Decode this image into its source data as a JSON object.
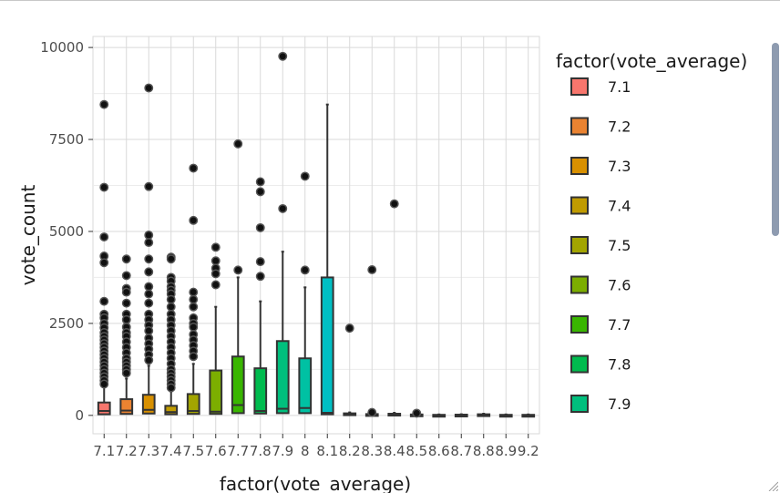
{
  "chart_data": {
    "type": "boxplot",
    "xlabel": "factor(vote_average)",
    "ylabel": "vote_count",
    "ylim": [
      -500,
      10300
    ],
    "y_ticks": [
      0,
      2500,
      5000,
      7500,
      10000
    ],
    "grid": true,
    "legend_title": "factor(vote_average)",
    "legend_position": "right",
    "categories": [
      "7.1",
      "7.2",
      "7.3",
      "7.4",
      "7.5",
      "7.6",
      "7.7",
      "7.8",
      "7.9",
      "8",
      "8.1",
      "8.2",
      "8.3",
      "8.4",
      "8.5",
      "8.6",
      "8.7",
      "8.8",
      "8.9",
      "9.2"
    ],
    "colors": [
      "#F8766D",
      "#E58700",
      "#C99800",
      "#A3A500",
      "#6BB100",
      "#00BA38",
      "#00BF7D",
      "#00C0AF",
      "#00BCD8",
      "#00B0F6",
      "#619CFF",
      "#B983FF",
      "#E76BF3",
      "#FD61D1",
      "#FF67A4",
      "#F8766D",
      "#F8766D",
      "#F8766D",
      "#F8766D",
      "#F8766D"
    ],
    "fill_colors": [
      "#F8766D",
      "#EA8331",
      "#D89000",
      "#C09B00",
      "#A3A500",
      "#7CAE00",
      "#39B600",
      "#00BB4E",
      "#00BF7D",
      "#00C1A3",
      "#00BFC4",
      "#00BAE0",
      "#00B0F6",
      "#35A2FF",
      "#9590FF",
      "#C77CFF",
      "#E76BF3",
      "#FA62DB",
      "#FF62BC",
      "#FF6C91"
    ],
    "boxes": [
      {
        "min": 0,
        "q1": 30,
        "median": 120,
        "q3": 350,
        "max": 800
      },
      {
        "min": 0,
        "q1": 40,
        "median": 130,
        "q3": 440,
        "max": 1000
      },
      {
        "min": 0,
        "q1": 50,
        "median": 150,
        "q3": 560,
        "max": 1350
      },
      {
        "min": 0,
        "q1": 30,
        "median": 90,
        "q3": 260,
        "max": 650
      },
      {
        "min": 0,
        "q1": 40,
        "median": 120,
        "q3": 580,
        "max": 1400
      },
      {
        "min": 0,
        "q1": 40,
        "median": 100,
        "q3": 1220,
        "max": 2950
      },
      {
        "min": 0,
        "q1": 60,
        "median": 280,
        "q3": 1600,
        "max": 3750
      },
      {
        "min": 0,
        "q1": 50,
        "median": 120,
        "q3": 1280,
        "max": 3100
      },
      {
        "min": 0,
        "q1": 60,
        "median": 180,
        "q3": 2020,
        "max": 4450
      },
      {
        "min": 0,
        "q1": 60,
        "median": 200,
        "q3": 1550,
        "max": 3480
      },
      {
        "min": 0,
        "q1": 30,
        "median": 70,
        "q3": 3750,
        "max": 8450
      },
      {
        "min": 0,
        "q1": 10,
        "median": 30,
        "q3": 55,
        "max": 80
      },
      {
        "min": 0,
        "q1": 5,
        "median": 15,
        "q3": 35,
        "max": 60
      },
      {
        "min": 0,
        "q1": 10,
        "median": 25,
        "q3": 45,
        "max": 70
      },
      {
        "min": 0,
        "q1": 5,
        "median": 12,
        "q3": 25,
        "max": 40
      },
      {
        "min": 0,
        "q1": 3,
        "median": 8,
        "q3": 15,
        "max": 25
      },
      {
        "min": 0,
        "q1": 3,
        "median": 10,
        "q3": 20,
        "max": 30
      },
      {
        "min": 0,
        "q1": 5,
        "median": 15,
        "q3": 30,
        "max": 45
      },
      {
        "min": 0,
        "q1": 3,
        "median": 8,
        "q3": 15,
        "max": 25
      },
      {
        "min": 0,
        "q1": 3,
        "median": 8,
        "q3": 15,
        "max": 25
      }
    ],
    "outliers": [
      [
        8450,
        6200,
        4850,
        4330,
        4150,
        3100,
        2750,
        2650,
        2500,
        2380,
        2250,
        2150,
        2050,
        1950,
        1850,
        1750,
        1650,
        1550,
        1450,
        1350,
        1250,
        1150,
        1050,
        950,
        850
      ],
      [
        4250,
        3800,
        3450,
        3350,
        3050,
        2750,
        2600,
        2400,
        2250,
        2150,
        2000,
        1850,
        1700,
        1550,
        1450,
        1350,
        1250,
        1150
      ],
      [
        8900,
        6220,
        4900,
        4700,
        4250,
        3900,
        3500,
        3300,
        3050,
        2750,
        2600,
        2450,
        2300,
        2100,
        1950,
        1800,
        1650,
        1500
      ],
      [
        4300,
        4250,
        3750,
        3650,
        3500,
        3400,
        3300,
        3150,
        2950,
        2750,
        2600,
        2450,
        2300,
        2150,
        2000,
        1850,
        1700,
        1550,
        1400,
        1250,
        1150,
        1050,
        950,
        850,
        750
      ],
      [
        6720,
        5300,
        3350,
        3150,
        2950,
        2650,
        2500,
        2400,
        2200,
        2050,
        1900,
        1750,
        1600
      ],
      [
        4570,
        4200,
        4000,
        3850,
        3550
      ],
      [
        7380,
        3950
      ],
      [
        6350,
        6080,
        5100,
        4180,
        3780
      ],
      [
        9760,
        5620
      ],
      [
        6500,
        3950
      ],
      [],
      [
        2370
      ],
      [
        3960,
        80
      ],
      [
        5750
      ],
      [
        60
      ],
      [],
      [],
      [],
      [],
      []
    ],
    "legend_visible_items": [
      "7.1",
      "7.2",
      "7.3",
      "7.4",
      "7.5",
      "7.6",
      "7.7",
      "7.8",
      "7.9"
    ]
  }
}
